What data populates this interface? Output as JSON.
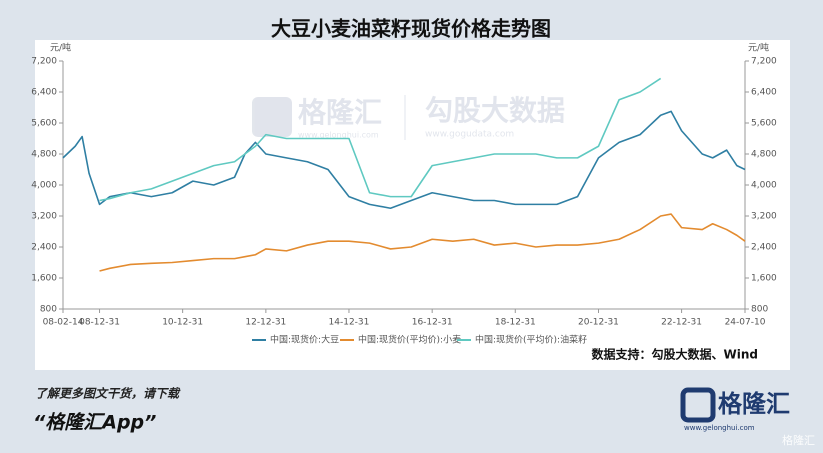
{
  "chart_data": {
    "type": "line",
    "title": "大豆小麦油菜籽现货价格走势图",
    "ylabel": "元/吨",
    "y2label": "元/吨",
    "x": [
      "08-02-14",
      "08-05-31",
      "08-07-31",
      "08-09-30",
      "08-12-31",
      "09-03-31",
      "09-09-30",
      "10-03-31",
      "10-09-30",
      "11-03-31",
      "11-09-30",
      "12-03-31",
      "12-06-30",
      "12-09-30",
      "12-12-31",
      "13-06-30",
      "13-12-31",
      "14-06-30",
      "14-12-31",
      "15-06-30",
      "15-12-31",
      "16-06-30",
      "16-12-31",
      "17-06-30",
      "17-12-31",
      "18-06-30",
      "18-12-31",
      "19-06-30",
      "19-12-31",
      "20-06-30",
      "20-12-31",
      "21-06-30",
      "21-12-31",
      "22-06-30",
      "22-09-30",
      "22-12-31",
      "23-06-30",
      "23-09-30",
      "24-01-31",
      "24-04-30",
      "24-07-10"
    ],
    "xlim": [
      "08-02-14",
      "24-07-10"
    ],
    "xticks": [
      "08-02-14",
      "08-12-31",
      "10-12-31",
      "12-12-31",
      "14-12-31",
      "16-12-31",
      "18-12-31",
      "20-12-31",
      "22-12-31",
      "24-07-10"
    ],
    "ylim": [
      800,
      7200
    ],
    "yticks": [
      800,
      {
        "value": 1600,
        "label": "1,600"
      },
      {
        "value": 2400,
        "label": "2,400"
      },
      {
        "value": 3200,
        "label": "3,200"
      },
      {
        "value": 4000,
        "label": "4,000"
      },
      {
        "value": 4800,
        "label": "4,800"
      },
      {
        "value": 5600,
        "label": "5,600"
      },
      {
        "value": 6400,
        "label": "6,400"
      },
      {
        "value": 7200,
        "label": "7,200"
      }
    ],
    "y2lim": [
      800,
      7200
    ],
    "y2ticks": [
      800,
      {
        "value": 1600,
        "label": "1,600"
      },
      {
        "value": 2400,
        "label": "2,400"
      },
      {
        "value": 3200,
        "label": "3,200"
      },
      {
        "value": 4000,
        "label": "4,000"
      },
      {
        "value": 4800,
        "label": "4,800"
      },
      {
        "value": 5600,
        "label": "5,600"
      },
      {
        "value": 6400,
        "label": "6,400"
      },
      {
        "value": 7200,
        "label": "7,200"
      }
    ],
    "series": [
      {
        "name": "中国:现货价:大豆",
        "color": "#2f7fa3",
        "values": [
          4700,
          5000,
          5250,
          4300,
          3500,
          3700,
          3800,
          3700,
          3800,
          4100,
          4000,
          4200,
          4800,
          5100,
          4800,
          4700,
          4600,
          4400,
          3700,
          3500,
          3400,
          3600,
          3800,
          3700,
          3600,
          3600,
          3500,
          3500,
          3500,
          3700,
          4700,
          5100,
          5300,
          5800,
          5900,
          5400,
          4800,
          4700,
          4900,
          4500,
          4400
        ]
      },
      {
        "name": "中国:现货价(平均价):小麦",
        "color": "#e38b2f",
        "values": [
          null,
          null,
          null,
          null,
          1780,
          1850,
          1950,
          1980,
          2000,
          2050,
          2100,
          2100,
          2150,
          2200,
          2350,
          2300,
          2450,
          2550,
          2550,
          2500,
          2350,
          2400,
          2600,
          2550,
          2600,
          2450,
          2500,
          2400,
          2450,
          2450,
          2500,
          2600,
          2850,
          3200,
          3250,
          2900,
          2850,
          3000,
          2850,
          2700,
          2550
        ]
      },
      {
        "name": "中国:现货价(平均价):油菜籽",
        "color": "#5fc9c1",
        "values": [
          null,
          null,
          null,
          null,
          3600,
          3650,
          3800,
          3900,
          4100,
          4300,
          4500,
          4600,
          4800,
          5000,
          5300,
          5200,
          5200,
          5200,
          5200,
          3800,
          3700,
          3700,
          4500,
          4600,
          4700,
          4800,
          4800,
          4800,
          4700,
          4700,
          5000,
          6200,
          6400,
          6750,
          null,
          null,
          null,
          null,
          null,
          null,
          null
        ]
      }
    ],
    "legend": "bottom",
    "source": "数据支持：勾股大数据、Wind"
  },
  "watermark": {
    "brand": "格隆汇",
    "brand_url": "www.gelonghui.com",
    "partner": "勾股大数据",
    "partner_url": "www.gogudata.com"
  },
  "footer": {
    "prompt": "了解更多图文干货，请下载",
    "app": "“格隆汇App”",
    "logo": "格隆汇",
    "logo_url": "www.gelonghui.com",
    "corner": "格隆汇"
  }
}
